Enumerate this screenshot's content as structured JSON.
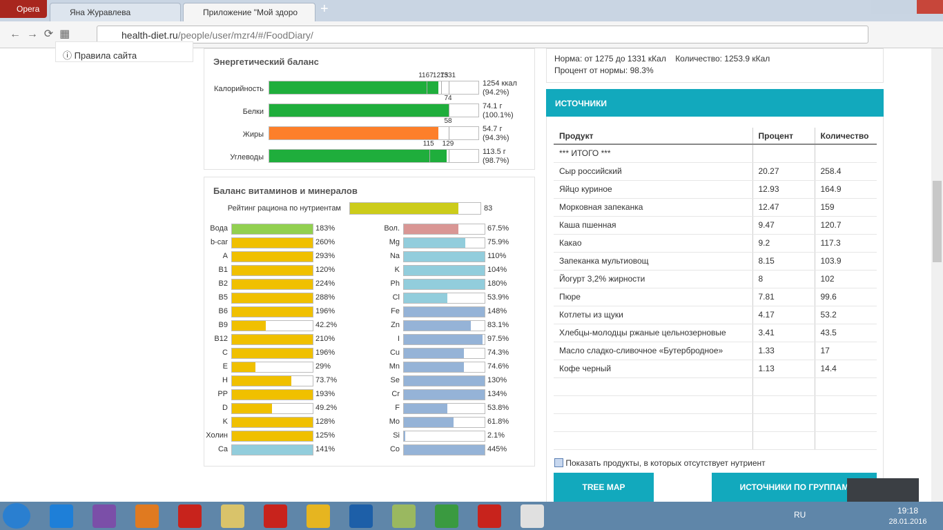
{
  "browser": {
    "menu": "Opera",
    "tabs": [
      "Яна Журавлева",
      "Приложение \"Мой здоро"
    ],
    "url_host": "health-diet.ru",
    "url_path": "/people/user/mzr4/#/FoodDiary/"
  },
  "sidebar": {
    "link": "Правила сайта"
  },
  "energy": {
    "title": "Энергетический баланс",
    "rows": [
      {
        "label": "Калорийность",
        "marks": [
          1167,
          1275,
          1331
        ],
        "amount": "1254 ккал",
        "value": 94.2,
        "value_label": "(94.2%)",
        "color": "#1fae3c"
      },
      {
        "label": "Белки",
        "marks": [
          74
        ],
        "amount": "74.1 г",
        "value": 100.1,
        "value_label": "(100.1%)",
        "color": "#1fae3c"
      },
      {
        "label": "Жиры",
        "marks": [
          58
        ],
        "amount": "54.7 г",
        "value": 94.3,
        "value_label": "(94.3%)",
        "color": "#fd7f2a"
      },
      {
        "label": "Углеводы",
        "marks": [
          115,
          129
        ],
        "amount": "113.5 г",
        "value": 98.7,
        "value_label": "(98.7%)",
        "color": "#1fae3c"
      }
    ]
  },
  "vitamins": {
    "title": "Баланс витаминов и минералов",
    "rating": {
      "label": "Рейтинг рациона по нутриентам",
      "value": 83,
      "color": "#cccc1a"
    },
    "columns": [
      [
        {
          "name": "Вода",
          "value": 183,
          "label": "183%",
          "color": "#92d050"
        },
        {
          "name": "b-car",
          "value": 260,
          "label": "260%",
          "color": "#f0c000"
        },
        {
          "name": "A",
          "value": 293,
          "label": "293%",
          "color": "#f0c000"
        },
        {
          "name": "B1",
          "value": 120,
          "label": "120%",
          "color": "#f0c000"
        },
        {
          "name": "B2",
          "value": 224,
          "label": "224%",
          "color": "#f0c000"
        },
        {
          "name": "B5",
          "value": 288,
          "label": "288%",
          "color": "#f0c000"
        },
        {
          "name": "B6",
          "value": 196,
          "label": "196%",
          "color": "#f0c000"
        },
        {
          "name": "B9",
          "value": 42.2,
          "label": "42.2%",
          "color": "#f0c000"
        },
        {
          "name": "B12",
          "value": 210,
          "label": "210%",
          "color": "#f0c000"
        },
        {
          "name": "C",
          "value": 196,
          "label": "196%",
          "color": "#f0c000"
        },
        {
          "name": "E",
          "value": 29,
          "label": "29%",
          "color": "#f0c000"
        },
        {
          "name": "H",
          "value": 73.7,
          "label": "73.7%",
          "color": "#f0c000"
        },
        {
          "name": "PP",
          "value": 193,
          "label": "193%",
          "color": "#f0c000"
        },
        {
          "name": "D",
          "value": 49.2,
          "label": "49.2%",
          "color": "#f0c000"
        },
        {
          "name": "K",
          "value": 128,
          "label": "128%",
          "color": "#f0c000"
        },
        {
          "name": "Холин",
          "value": 125,
          "label": "125%",
          "color": "#f0c000"
        },
        {
          "name": "Ca",
          "value": 141,
          "label": "141%",
          "color": "#92cddc"
        }
      ],
      [
        {
          "name": "Вол.",
          "value": 67.5,
          "label": "67.5%",
          "color": "#d99694"
        },
        {
          "name": "Mg",
          "value": 75.9,
          "label": "75.9%",
          "color": "#92cddc"
        },
        {
          "name": "Na",
          "value": 110,
          "label": "110%",
          "color": "#92cddc"
        },
        {
          "name": "K",
          "value": 104,
          "label": "104%",
          "color": "#92cddc"
        },
        {
          "name": "Ph",
          "value": 180,
          "label": "180%",
          "color": "#92cddc"
        },
        {
          "name": "Cl",
          "value": 53.9,
          "label": "53.9%",
          "color": "#92cddc"
        },
        {
          "name": "Fe",
          "value": 148,
          "label": "148%",
          "color": "#95b3d7"
        },
        {
          "name": "Zn",
          "value": 83.1,
          "label": "83.1%",
          "color": "#95b3d7"
        },
        {
          "name": "I",
          "value": 97.5,
          "label": "97.5%",
          "color": "#95b3d7"
        },
        {
          "name": "Cu",
          "value": 74.3,
          "label": "74.3%",
          "color": "#95b3d7"
        },
        {
          "name": "Mn",
          "value": 74.6,
          "label": "74.6%",
          "color": "#95b3d7"
        },
        {
          "name": "Se",
          "value": 130,
          "label": "130%",
          "color": "#95b3d7"
        },
        {
          "name": "Cr",
          "value": 134,
          "label": "134%",
          "color": "#95b3d7"
        },
        {
          "name": "F",
          "value": 53.8,
          "label": "53.8%",
          "color": "#95b3d7"
        },
        {
          "name": "Mo",
          "value": 61.8,
          "label": "61.8%",
          "color": "#95b3d7"
        },
        {
          "name": "Si",
          "value": 2.1,
          "label": "2.1%",
          "color": "#95b3d7"
        },
        {
          "name": "Co",
          "value": 445,
          "label": "445%",
          "color": "#95b3d7"
        }
      ]
    ]
  },
  "summary": {
    "norm": "Норма: от 1275 до 1331 кКал",
    "amount": "Количество: 1253.9 кКал",
    "percent": "Процент от нормы: 98.3%"
  },
  "sources": {
    "title": "ИСТОЧНИКИ",
    "header": [
      "Продукт",
      "Процент",
      "Количество"
    ],
    "rows": [
      [
        "*** ИТОГО ***"
      ],
      [
        "Сыр российский",
        "20.27",
        "258.4"
      ],
      [
        "Яйцо куриное",
        "12.93",
        "164.9"
      ],
      [
        "Морковная запеканка",
        "12.47",
        "159"
      ],
      [
        "Каша пшенная",
        "9.47",
        "120.7"
      ],
      [
        "Какао",
        "9.2",
        "117.3"
      ],
      [
        "Запеканка мультиовощ",
        "8.15",
        "103.9"
      ],
      [
        "Йогурт 3,2% жирности",
        "8",
        "102"
      ],
      [
        "Пюре",
        "7.81",
        "99.6"
      ],
      [
        "Котлеты из щуки",
        "4.17",
        "53.2"
      ],
      [
        "Хлебцы-молодцы ржаные цельнозерновые",
        "3.41",
        "43.5"
      ],
      [
        "Масло сладко-сливочное «Бутербродное»",
        "1.33",
        "17"
      ],
      [
        "Кофе черный",
        "1.13",
        "14.4"
      ]
    ],
    "checkbox": "Показать продукты, в которых отсутствует нутриент",
    "buttons": [
      "TREE MAP",
      "ИСТОЧНИКИ ПО ГРУППАМ"
    ]
  },
  "taskbar": {
    "lang": "RU",
    "time": "19:18",
    "date": "28.01.2016"
  }
}
